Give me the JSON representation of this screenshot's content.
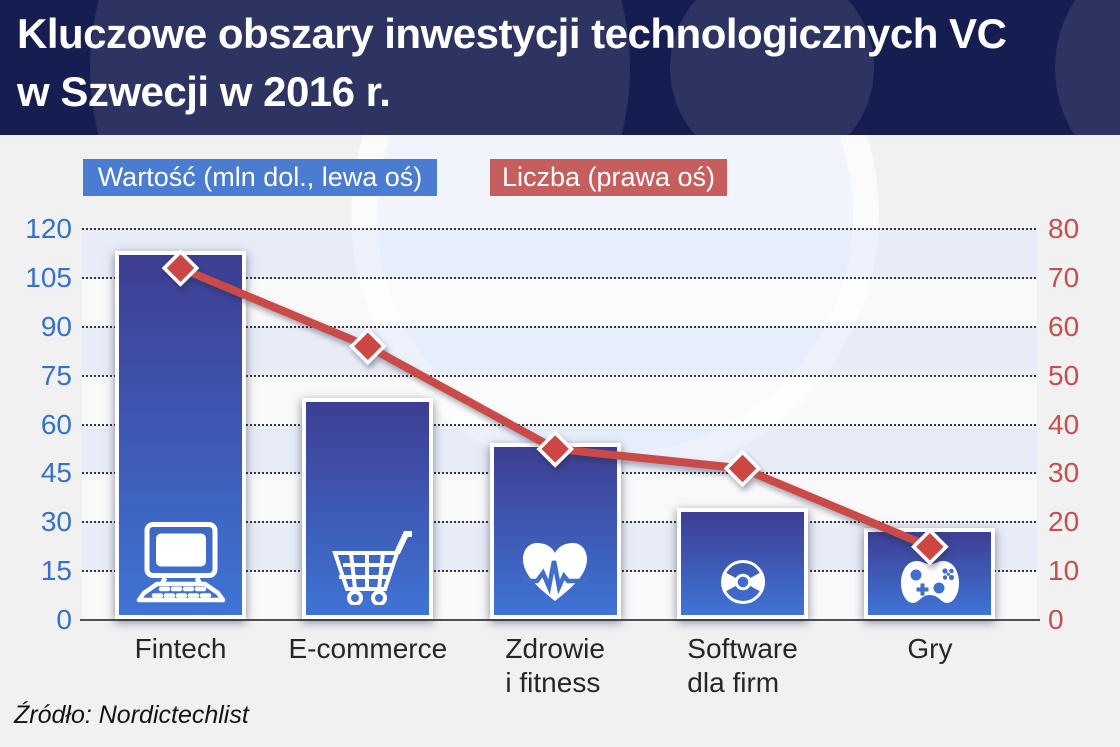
{
  "title": {
    "line1": "Kluczowe obszary inwestycji technologicznych VC",
    "line2": "w Szwecji w 2016 r."
  },
  "legend": {
    "value_label": "Wartość (mln dol., lewa oś)",
    "count_label": "Liczba (prawa oś)"
  },
  "source": "Źródło: Nordictechlist",
  "chart_data": {
    "type": "bar",
    "title": "Kluczowe obszary inwestycji technologicznych VC w Szwecji w 2016 r.",
    "categories": [
      "Fintech",
      "E-commerce",
      "Zdrowie i fitness",
      "Software dla firm",
      "Gry"
    ],
    "category_display_lines": [
      [
        "Fintech"
      ],
      [
        "E-commerce"
      ],
      [
        "Zdrowie",
        "i fitness"
      ],
      [
        "Software",
        "dla firm"
      ],
      [
        "Gry"
      ]
    ],
    "series": [
      {
        "name": "Wartość (mln dol., lewa oś)",
        "type": "bar",
        "axis": "left",
        "values": [
          112,
          67,
          53,
          33,
          27
        ]
      },
      {
        "name": "Liczba (prawa oś)",
        "type": "line",
        "axis": "right",
        "values": [
          72,
          56,
          35,
          31,
          15
        ]
      }
    ],
    "left_axis": {
      "min": 0,
      "max": 120,
      "step": 15,
      "ticks": [
        0,
        15,
        30,
        45,
        60,
        75,
        90,
        105,
        120
      ]
    },
    "right_axis": {
      "min": 0,
      "max": 80,
      "step": 10,
      "ticks": [
        0,
        10,
        20,
        30,
        40,
        50,
        60,
        70,
        80
      ]
    },
    "grid": "horizontal dotted",
    "legend_position": "top",
    "icons": [
      "computer-icon",
      "cart-icon",
      "heart-pulse-icon",
      "disc-icon",
      "gamepad-icon"
    ]
  },
  "colors": {
    "banner": "#161d50",
    "background": "#f1f1f2",
    "band_blue": "rgba(221,231,252,0.5)",
    "band_white": "rgba(255,255,255,0.6)",
    "bar_top": "#3d3e92",
    "bar_bottom": "#3f74d6",
    "line": "#ca4a47",
    "marker": "#cc4744",
    "legend_value_bg": "#4a7cd1",
    "legend_count_bg": "#c65e5e",
    "left_tick": "#3671c9",
    "right_tick": "#c4504d"
  }
}
